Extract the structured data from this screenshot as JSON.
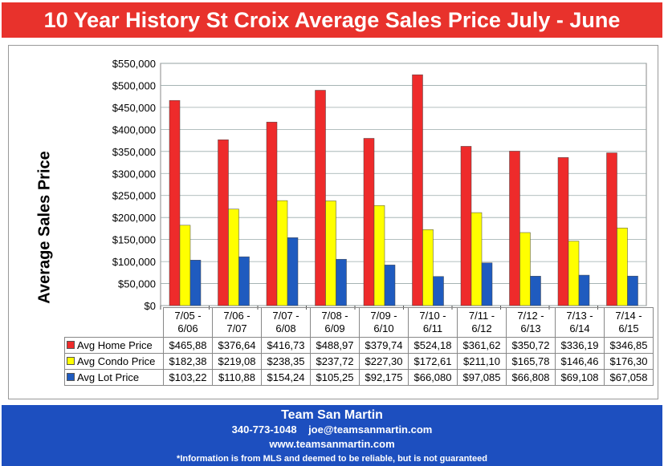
{
  "title": "10 Year History St Croix Average Sales Price July - June",
  "chart_data": {
    "type": "bar",
    "title": "10 Year History St Croix Average Sales Price July - June",
    "ylabel": "Average Sales Price",
    "ylim": [
      0,
      550000
    ],
    "yticks": [
      "$0",
      "$50,000",
      "$100,000",
      "$150,000",
      "$200,000",
      "$250,000",
      "$300,000",
      "$350,000",
      "$400,000",
      "$450,000",
      "$500,000",
      "$550,000"
    ],
    "categories": [
      [
        "7/05 -",
        "6/06"
      ],
      [
        "7/06 -",
        "7/07"
      ],
      [
        "7/07 -",
        "6/08"
      ],
      [
        "7/08 -",
        "6/09"
      ],
      [
        "7/09 -",
        "6/10"
      ],
      [
        "7/10 -",
        "6/11"
      ],
      [
        "7/11 -",
        "6/12"
      ],
      [
        "7/12 -",
        "6/13"
      ],
      [
        "7/13 -",
        "6/14"
      ],
      [
        "7/14 -",
        "6/15"
      ]
    ],
    "series": [
      {
        "name": "Avg Home Price",
        "color": "#ee2b2b",
        "values": [
          465880,
          376640,
          416730,
          488970,
          379740,
          524180,
          361620,
          350720,
          336190,
          346850
        ],
        "labels": [
          "$465,88",
          "$376,64",
          "$416,73",
          "$488,97",
          "$379,74",
          "$524,18",
          "$361,62",
          "$350,72",
          "$336,19",
          "$346,85"
        ]
      },
      {
        "name": "Avg Condo Price",
        "color": "#ffff00",
        "values": [
          182380,
          219080,
          238350,
          237720,
          227300,
          172610,
          211100,
          165780,
          146460,
          176300
        ],
        "labels": [
          "$182,38",
          "$219,08",
          "$238,35",
          "$237,72",
          "$227,30",
          "$172,61",
          "$211,10",
          "$165,78",
          "$146,46",
          "$176,30"
        ]
      },
      {
        "name": "Avg Lot Price",
        "color": "#1f5bbf",
        "values": [
          103220,
          110880,
          154240,
          105250,
          92175,
          66080,
          97085,
          66808,
          69108,
          67058
        ],
        "labels": [
          "$103,22",
          "$110,88",
          "$154,24",
          "$105,25",
          "$92,175",
          "$66,080",
          "$97,085",
          "$66,808",
          "$69,108",
          "$67,058"
        ]
      }
    ]
  },
  "footer": {
    "name": "Team San Martin",
    "phone": "340-773-1048",
    "email": "joe@teamsanmartin.com",
    "web": "www.teamsanmartin.com",
    "disclaimer": "*Information is from MLS and deemed to be reliable, but is not guaranteed"
  }
}
